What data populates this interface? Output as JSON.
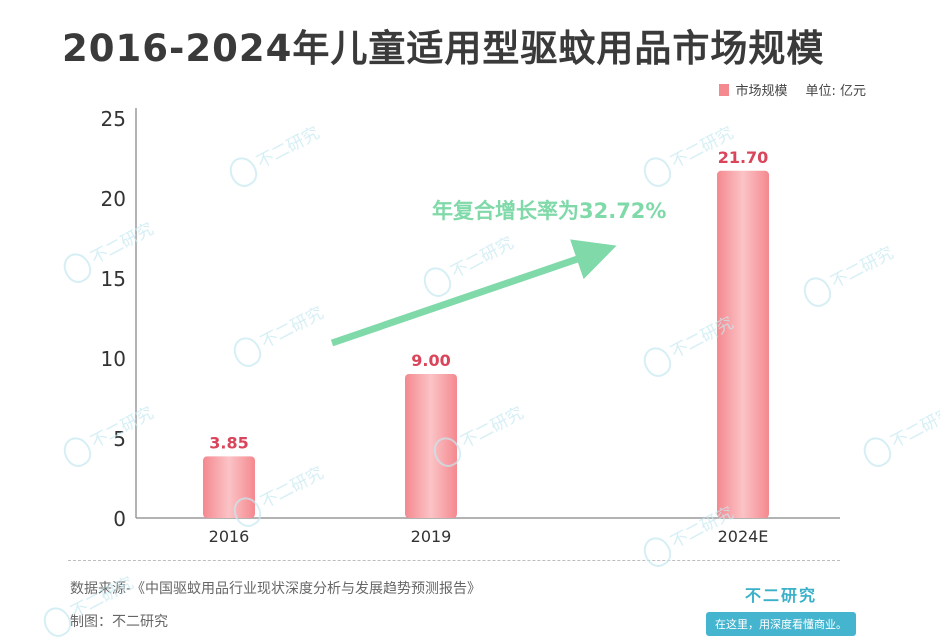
{
  "title": "2016-2024年儿童适用型驱蚊用品市场规模",
  "legend": {
    "series_label": "市场规模",
    "unit": "单位: 亿元"
  },
  "annotation": {
    "text": "年复合增长率为32.72%",
    "color": "#7fd9a8"
  },
  "colors": {
    "bar": "#f4898f",
    "bar_highlight": "#fbc3c6",
    "value_label": "#d9455a",
    "axis": "#9a9a9a"
  },
  "chart_data": {
    "type": "bar",
    "categories": [
      "2016",
      "2019",
      "2024E"
    ],
    "series": [
      {
        "name": "市场规模",
        "values": [
          3.85,
          9.0,
          21.7
        ]
      }
    ],
    "value_labels": [
      "3.85",
      "9.00",
      "21.70"
    ],
    "ylim": [
      0,
      25
    ],
    "yticks": [
      0,
      5,
      10,
      15,
      20,
      25
    ],
    "title": "2016-2024年儿童适用型驱蚊用品市场规模",
    "xlabel": "",
    "ylabel": "",
    "grid": false,
    "legend_position": "top-right"
  },
  "footer": {
    "source": "数据来源-《中国驱蚊用品行业现状深度分析与发展趋势预测报告》",
    "maker": "制图：不二研究"
  },
  "brand": {
    "name": "不二研究",
    "slogan": "在这里，用深度看懂商业。"
  },
  "watermark": {
    "text": "不二研究"
  }
}
